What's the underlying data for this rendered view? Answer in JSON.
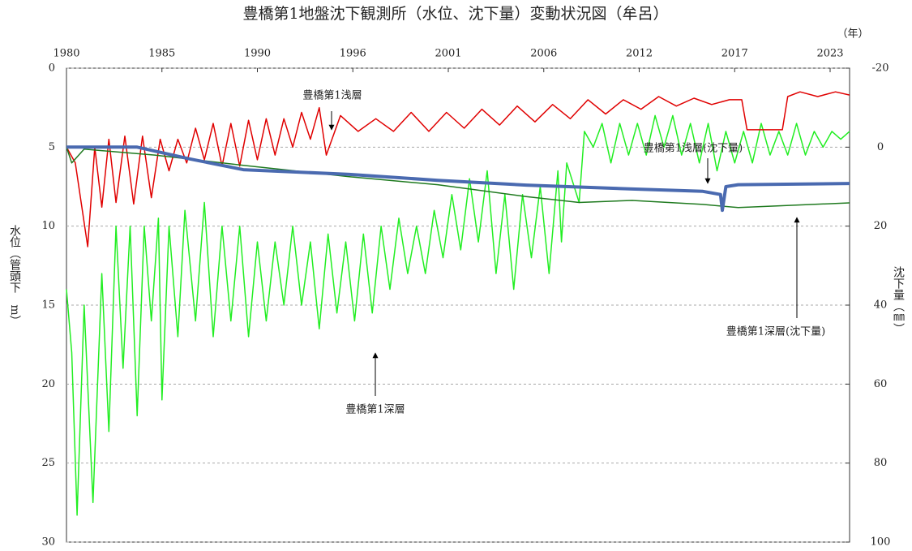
{
  "chart_data": {
    "type": "line",
    "title": "豊橋第1地盤沈下観測所（水位、沈下量）変動状況図（牟呂）",
    "x_unit": "（年）",
    "y_label": "水位（管頭下　m）",
    "y2_label": "沈下量（㎜）",
    "xlim": [
      1980,
      2024.3
    ],
    "xticks": [
      {
        "value": 1980,
        "label": "1980"
      },
      {
        "value": 1985.4,
        "label": "1985"
      },
      {
        "value": 1990.8,
        "label": "1990"
      },
      {
        "value": 1996.2,
        "label": "1996"
      },
      {
        "value": 2001.6,
        "label": "2001"
      },
      {
        "value": 2007.0,
        "label": "2006"
      },
      {
        "value": 2012.4,
        "label": "2012"
      },
      {
        "value": 2017.8,
        "label": "2017"
      },
      {
        "value": 2023.2,
        "label": "2023"
      }
    ],
    "ylim": [
      0,
      30
    ],
    "yticks": [
      0,
      5,
      10,
      15,
      20,
      25,
      30
    ],
    "y_inverted": true,
    "y2lim": [
      -20,
      100
    ],
    "y2ticks": [
      -20,
      0,
      20,
      40,
      60,
      80,
      100
    ],
    "y2_inverted": true,
    "grid": true,
    "annotations": [
      "豊橋第1浅層",
      "豊橋第1浅層(沈下量)",
      "豊橋第1深層(沈下量)",
      "豊橋第1深層"
    ],
    "series": [
      {
        "name": "豊橋第1深層",
        "color": "#22ee22",
        "width": 1.5,
        "x": [
          1980,
          1980.3,
          1980.6,
          1981.0,
          1981.5,
          1982,
          1982.4,
          1982.8,
          1983.2,
          1983.6,
          1984.0,
          1984.4,
          1984.8,
          1985.2,
          1985.4,
          1985.8,
          1986.3,
          1986.7,
          1987.3,
          1987.8,
          1988.3,
          1988.8,
          1989.3,
          1989.8,
          1990.3,
          1990.8,
          1991.3,
          1991.8,
          1992.3,
          1992.8,
          1993.3,
          1993.8,
          1994.3,
          1994.8,
          1995.3,
          1995.8,
          1996.3,
          1996.8,
          1997.3,
          1997.8,
          1998.3,
          1998.8,
          1999.3,
          1999.8,
          2000.3,
          2000.8,
          2001.3,
          2001.8,
          2002.3,
          2002.8,
          2003.3,
          2003.8,
          2004.3,
          2004.8,
          2005.3,
          2005.8,
          2006.3,
          2006.8,
          2007.3,
          2007.8,
          2008.0,
          2008.3,
          2009.0,
          2009.3,
          2009.8,
          2010.3,
          2010.8,
          2011.3,
          2011.8,
          2012.3,
          2012.8,
          2013.3,
          2013.8,
          2014.3,
          2014.8,
          2015.3,
          2015.8,
          2016.3,
          2016.8,
          2017.3,
          2017.8,
          2018.3,
          2018.8,
          2019.3,
          2019.8,
          2020.3,
          2020.8,
          2021.3,
          2021.8,
          2022.3,
          2022.8,
          2023.3,
          2023.8,
          2024.3
        ],
        "values": [
          14,
          18,
          28.3,
          15,
          27.5,
          13,
          23,
          10,
          19,
          10,
          22,
          10,
          16,
          9.5,
          21,
          10,
          17,
          9,
          16,
          8.5,
          17,
          10,
          16,
          10,
          17,
          11,
          16,
          11,
          15,
          10,
          15,
          11,
          16.5,
          10.5,
          15.5,
          11,
          16,
          10.5,
          15.5,
          10,
          14,
          9.5,
          13,
          10,
          13,
          9,
          12,
          8,
          11.5,
          7,
          11,
          6.5,
          13,
          8,
          14,
          8,
          12,
          7.5,
          13,
          6.5,
          11,
          6,
          8.5,
          4,
          5,
          3.5,
          6,
          3.5,
          5.5,
          3.5,
          5.5,
          3,
          5,
          3,
          5.5,
          3.5,
          6,
          3.5,
          6.5,
          4,
          6,
          4,
          6,
          3.5,
          5.5,
          4,
          5.5,
          3.5,
          5.5,
          4,
          5,
          4,
          4.5,
          4
        ]
      },
      {
        "name": "豊橋第1浅層",
        "color": "#e00000",
        "width": 1.5,
        "x": [
          1980.0,
          1980.5,
          1981.2,
          1981.6,
          1982.0,
          1982.4,
          1982.8,
          1983.3,
          1983.8,
          1984.3,
          1984.8,
          1985.3,
          1985.8,
          1986.3,
          1986.8,
          1987.3,
          1987.8,
          1988.3,
          1988.8,
          1989.3,
          1989.8,
          1990.3,
          1990.8,
          1991.3,
          1991.8,
          1992.3,
          1992.8,
          1993.3,
          1993.8,
          1994.3,
          1994.7,
          1995.5,
          1996.5,
          1997.5,
          1998.5,
          1999.5,
          2000.5,
          2001.5,
          2002.5,
          2003.5,
          2004.5,
          2005.5,
          2006.5,
          2007.5,
          2008.5,
          2009.5,
          2010.5,
          2011.5,
          2012.5,
          2013.5,
          2014.5,
          2015.5,
          2016.5,
          2017.5,
          2018.2,
          2018.5,
          2020.5,
          2020.8,
          2021.5,
          2022.5,
          2023.5,
          2024.3
        ],
        "values": [
          5,
          6,
          11.3,
          5,
          8.8,
          4.5,
          8.5,
          4.3,
          8.6,
          4.3,
          8.2,
          4.5,
          6.5,
          4.5,
          6.0,
          3.8,
          5.8,
          3.5,
          6.2,
          3.5,
          6.2,
          3.3,
          5.8,
          3.2,
          5.5,
          3.2,
          5.0,
          2.8,
          4.5,
          2.5,
          5.5,
          3.0,
          4.0,
          3.2,
          4.0,
          2.8,
          4.0,
          2.8,
          3.8,
          2.6,
          3.6,
          2.4,
          3.4,
          2.3,
          3.2,
          2.0,
          2.9,
          2.0,
          2.6,
          1.8,
          2.4,
          1.9,
          2.3,
          2.0,
          2.0,
          3.9,
          3.9,
          1.8,
          1.5,
          1.8,
          1.5,
          1.7
        ]
      },
      {
        "name": "豊橋第1深層(沈下量)",
        "color": "#1f7a1f",
        "width": 1.5,
        "axis": "y2",
        "x": [
          1980,
          1980.3,
          1981,
          1985,
          1990,
          1996,
          2001,
          2006,
          2009,
          2012,
          2016,
          2018,
          2024.3
        ],
        "values": [
          0,
          4,
          0.5,
          2,
          4.6,
          7.5,
          9.5,
          12.5,
          14,
          13.5,
          14.5,
          15.3,
          14.1
        ]
      },
      {
        "name": "豊橋第1浅層(沈下量)",
        "color": "#4a6ab0",
        "width": 4,
        "axis": "y2",
        "x": [
          1980,
          1984,
          1987,
          1990,
          1996,
          2001,
          2006,
          2012,
          2016,
          2017,
          2017.1,
          2017.3,
          2018,
          2024.3
        ],
        "values": [
          0,
          0,
          3,
          5.7,
          6.9,
          8.4,
          9.6,
          10.6,
          11.2,
          12,
          16,
          10,
          9.5,
          9.2
        ]
      }
    ]
  }
}
